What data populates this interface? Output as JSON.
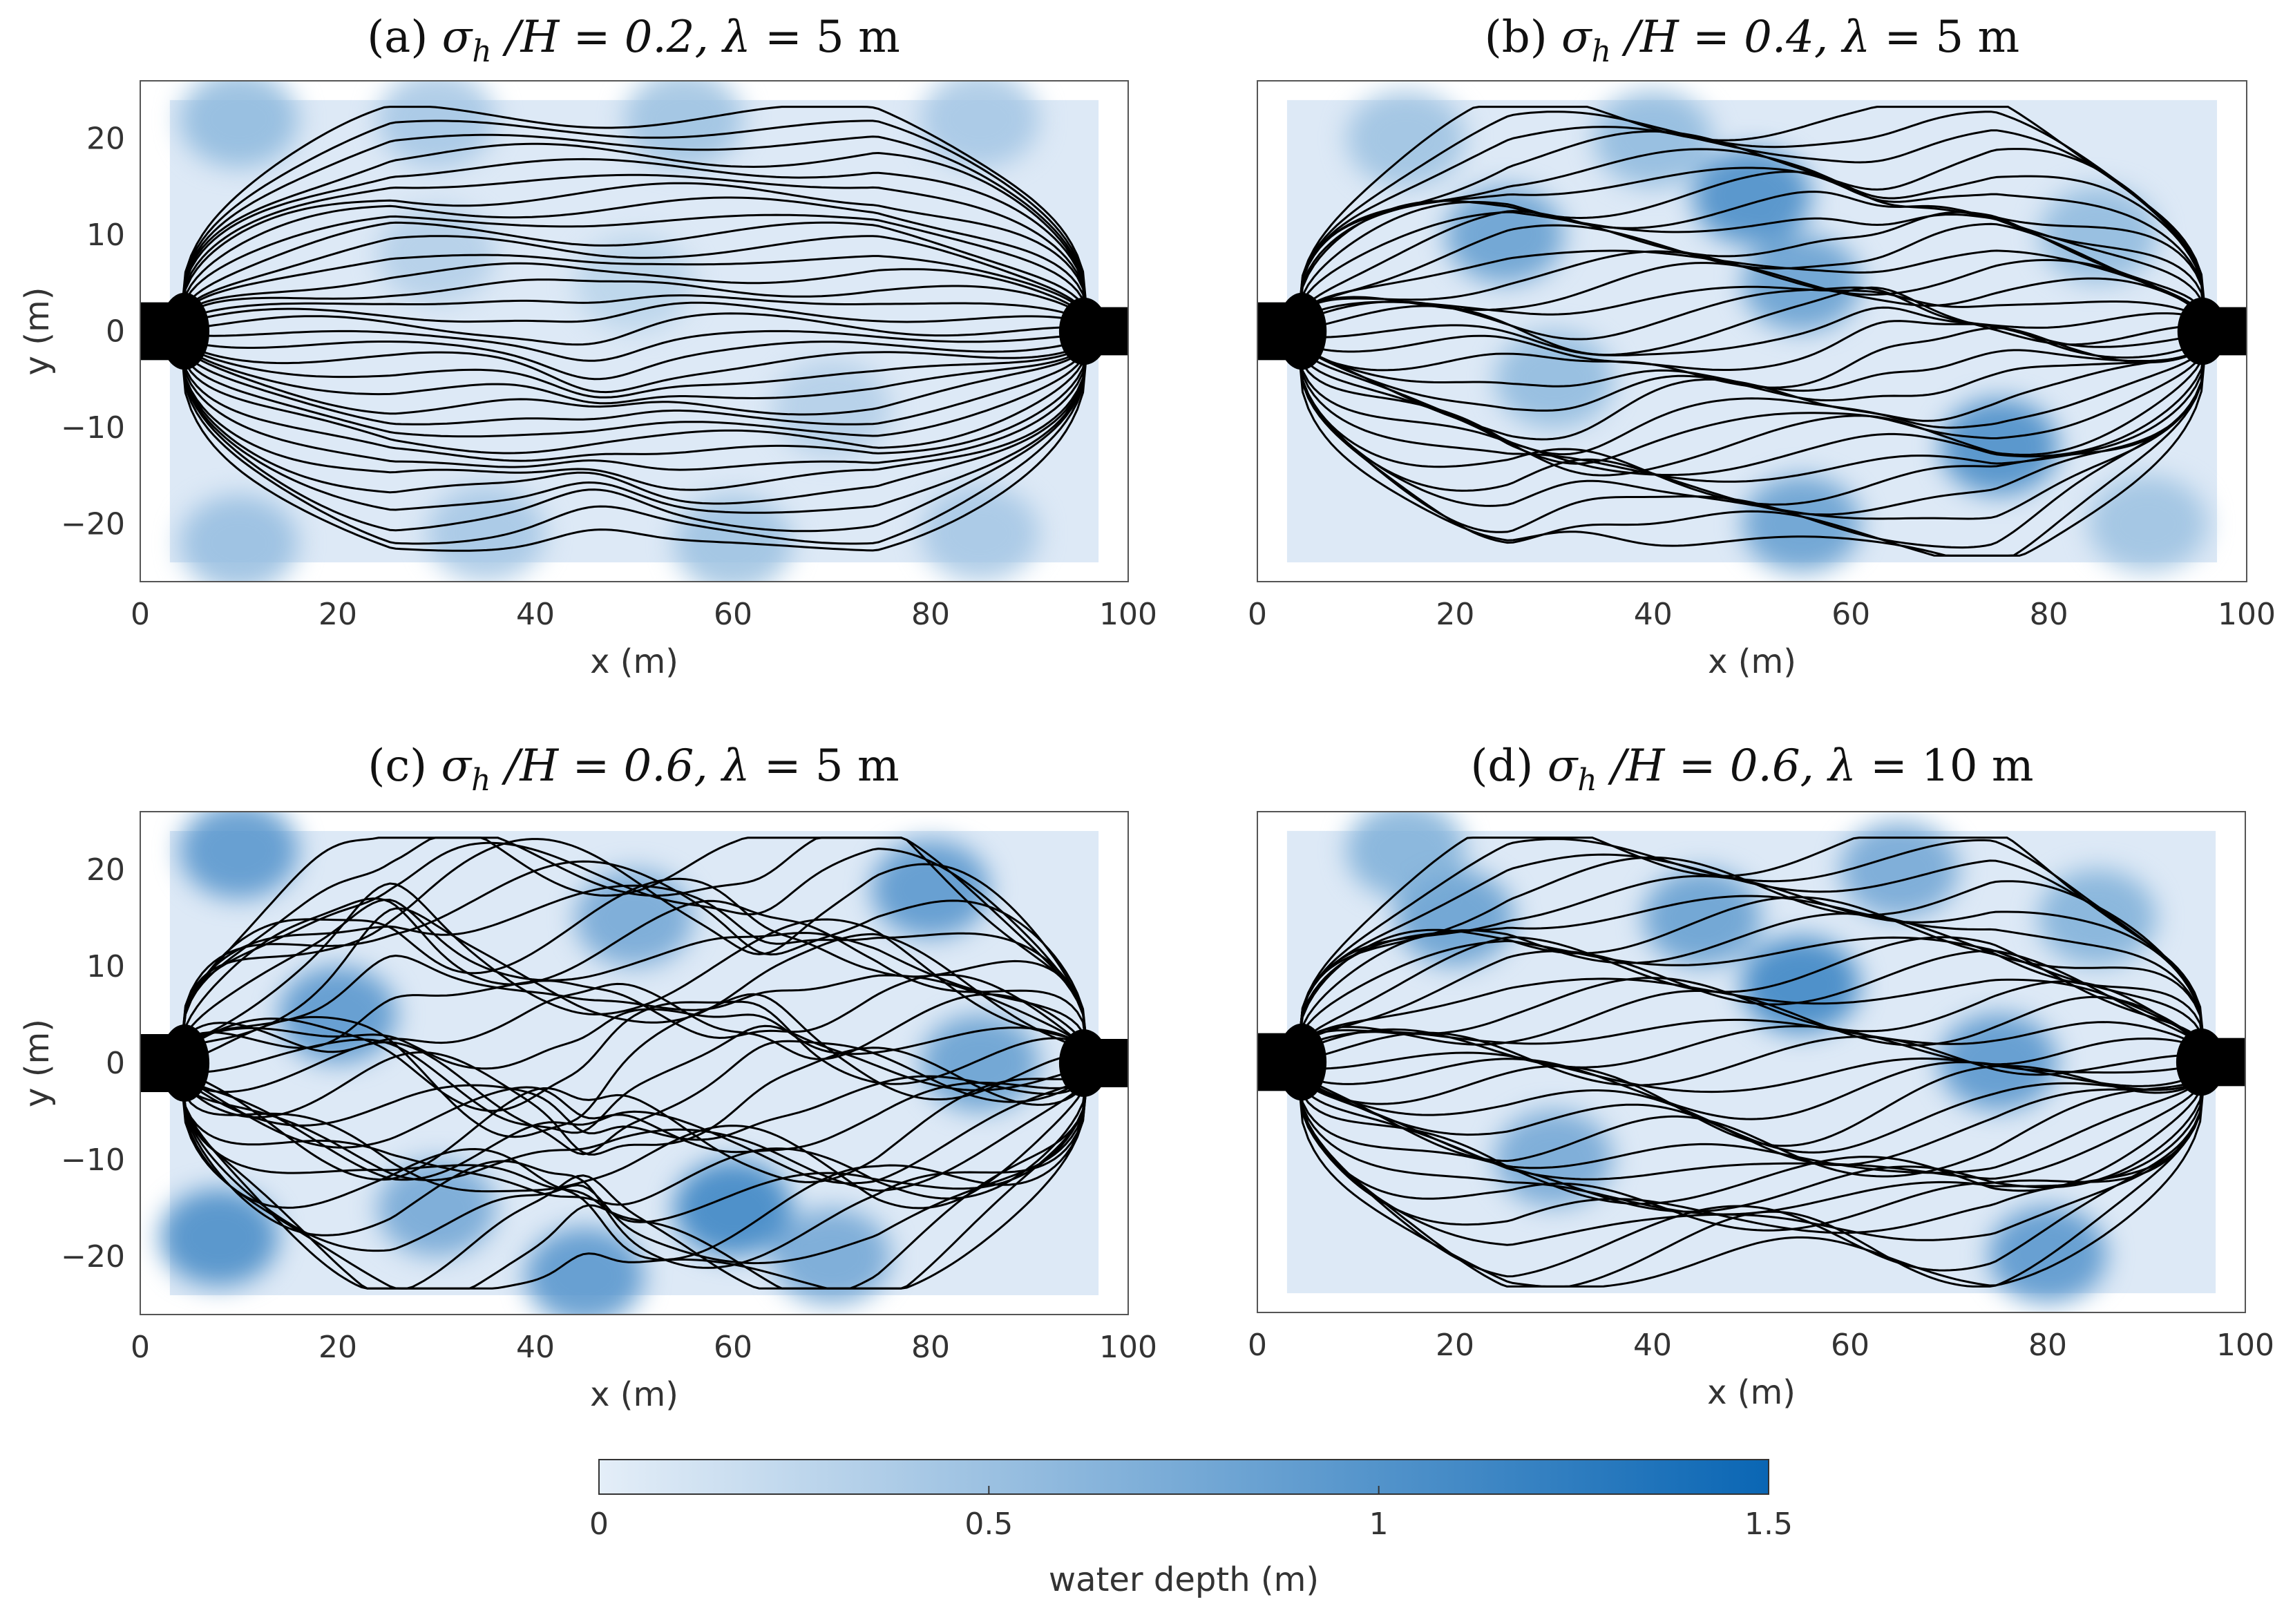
{
  "figure": {
    "colorbar": {
      "label": "water depth (m)",
      "ticks": [
        0,
        0.5,
        1,
        1.5
      ],
      "tick_labels": [
        "0",
        "0.5",
        "1",
        "1.5"
      ],
      "range": [
        0,
        1.5
      ],
      "color_low": "#e4eef8",
      "color_high": "#0a66b4"
    }
  },
  "chart_data": [
    {
      "type": "heatmap",
      "panel_label": "(a)",
      "title_parts": [
        "(a) ",
        "σ",
        "h",
        " /H = 0.2, ",
        "λ",
        " = 5 m"
      ],
      "xlabel": "x (m)",
      "ylabel": "y (m)",
      "xlim": [
        0,
        100
      ],
      "ylim": [
        -26,
        26
      ],
      "xticks": [
        0,
        20,
        40,
        60,
        80,
        100
      ],
      "yticks": [
        -20,
        -10,
        0,
        10,
        20
      ],
      "show_ylabels": true,
      "streamline_shape": {
        "amp": 1.2,
        "bumps": [
          [
            46,
            -11,
            6,
            0.5
          ]
        ],
        "sigma": 0.2,
        "count": 34
      },
      "depth_blobs": [
        [
          10,
          22,
          0.6
        ],
        [
          30,
          22,
          0.45
        ],
        [
          55,
          22,
          0.5
        ],
        [
          85,
          22,
          0.45
        ],
        [
          10,
          -22,
          0.55
        ],
        [
          35,
          -21,
          0.45
        ],
        [
          60,
          -22,
          0.5
        ],
        [
          85,
          -21,
          0.45
        ],
        [
          30,
          8,
          0.35
        ],
        [
          70,
          -8,
          0.35
        ],
        [
          50,
          5,
          0.3
        ]
      ]
    },
    {
      "type": "heatmap",
      "panel_label": "(b)",
      "title_parts": [
        "(b) ",
        "σ",
        "h",
        " /H = 0.4, ",
        "λ",
        " = 5 m"
      ],
      "xlabel": "x (m)",
      "ylabel": "",
      "xlim": [
        0,
        100
      ],
      "ylim": [
        -26,
        26
      ],
      "xticks": [
        0,
        20,
        40,
        60,
        80,
        100
      ],
      "yticks": [
        -20,
        -10,
        0,
        10,
        20
      ],
      "show_ylabels": false,
      "streamline_shape": {
        "amp": 2.5,
        "bumps": [
          [
            32,
            -14,
            7,
            0.6
          ],
          [
            63,
            6,
            5,
            0.4
          ],
          [
            75,
            -12,
            6,
            -0.3
          ]
        ],
        "sigma": 0.4,
        "count": 34
      },
      "depth_blobs": [
        [
          25,
          10,
          0.9
        ],
        [
          50,
          14,
          1.1
        ],
        [
          55,
          5,
          0.9
        ],
        [
          75,
          -12,
          1.1
        ],
        [
          55,
          -20,
          0.9
        ],
        [
          30,
          -5,
          0.6
        ],
        [
          15,
          20,
          0.5
        ],
        [
          85,
          10,
          0.6
        ],
        [
          90,
          -20,
          0.5
        ],
        [
          40,
          20,
          0.6
        ]
      ]
    },
    {
      "type": "heatmap",
      "panel_label": "(c)",
      "title_parts": [
        "(c) ",
        "σ",
        "h",
        " /H = 0.6, ",
        "λ",
        " = 5 m"
      ],
      "xlabel": "x (m)",
      "ylabel": "y (m)",
      "xlim": [
        0,
        100
      ],
      "ylim": [
        -26,
        26
      ],
      "xticks": [
        0,
        20,
        40,
        60,
        80,
        100
      ],
      "yticks": [
        -20,
        -10,
        0,
        10,
        20
      ],
      "show_ylabels": true,
      "streamline_shape": {
        "amp": 5,
        "bumps": [
          [
            25,
            17,
            5,
            0.9
          ],
          [
            38,
            -6,
            8,
            0.8
          ],
          [
            63,
            10,
            4,
            0.5
          ],
          [
            45,
            -11,
            3,
            0.6
          ]
        ],
        "sigma": 0.6,
        "count": 34
      },
      "depth_blobs": [
        [
          10,
          22,
          1.0
        ],
        [
          8,
          -18,
          1.1
        ],
        [
          20,
          5,
          1.0
        ],
        [
          60,
          -15,
          1.2
        ],
        [
          80,
          18,
          1.0
        ],
        [
          85,
          0,
          0.9
        ],
        [
          50,
          15,
          0.8
        ],
        [
          45,
          -22,
          1.0
        ],
        [
          30,
          -15,
          0.8
        ],
        [
          70,
          -20,
          0.8
        ]
      ]
    },
    {
      "type": "heatmap",
      "panel_label": "(d)",
      "title_parts": [
        "(d) ",
        "σ",
        "h",
        " /H = 0.6, ",
        "λ",
        " = 10 m"
      ],
      "xlabel": "x (m)",
      "ylabel": "",
      "xlim": [
        0,
        100
      ],
      "ylim": [
        -26,
        26
      ],
      "xticks": [
        0,
        20,
        40,
        60,
        80,
        100
      ],
      "yticks": [
        -20,
        -10,
        0,
        10,
        20
      ],
      "show_ylabels": false,
      "streamline_shape": {
        "amp": 3,
        "bumps": [
          [
            55,
            -14,
            12,
            0.7
          ],
          [
            85,
            10,
            8,
            0.3
          ]
        ],
        "sigma": 0.6,
        "count": 34
      },
      "depth_blobs": [
        [
          55,
          8,
          1.2
        ],
        [
          45,
          15,
          0.9
        ],
        [
          75,
          0,
          1.0
        ],
        [
          80,
          -20,
          1.0
        ],
        [
          20,
          15,
          0.9
        ],
        [
          15,
          22,
          0.7
        ],
        [
          30,
          -10,
          0.8
        ],
        [
          65,
          20,
          0.8
        ],
        [
          85,
          15,
          0.7
        ]
      ]
    }
  ]
}
